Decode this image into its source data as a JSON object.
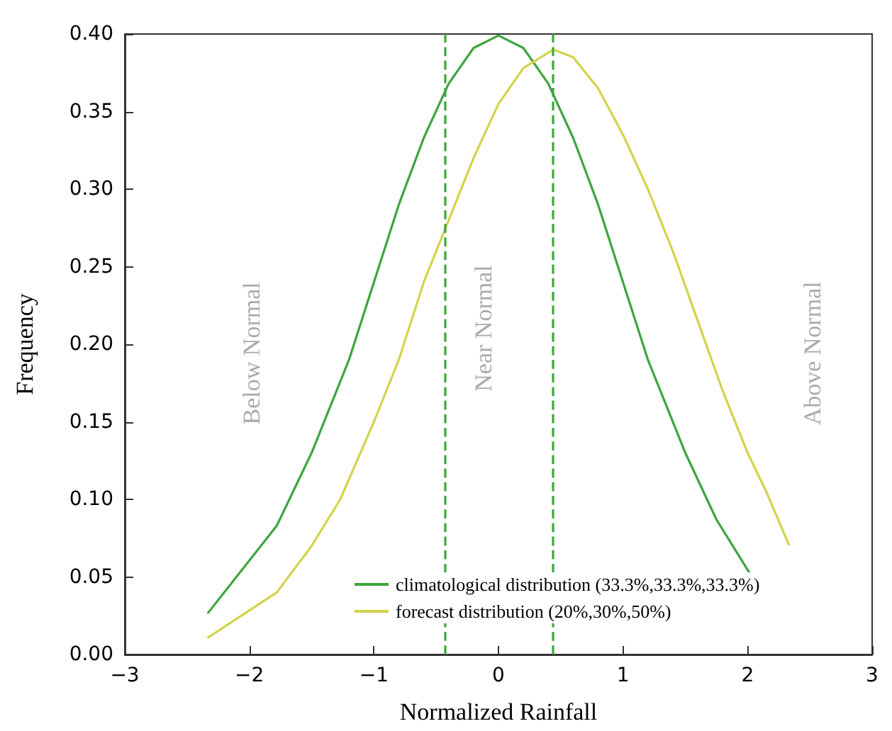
{
  "chart_data": {
    "type": "line",
    "xlabel": "Normalized Rainfall",
    "ylabel": "Frequency",
    "xlim": [
      -3,
      3
    ],
    "xticks": [
      {
        "value": -3,
        "label": "−3"
      },
      {
        "value": -2,
        "label": "−2"
      },
      {
        "value": -1,
        "label": "−1"
      },
      0,
      1,
      2,
      3
    ],
    "ylim": [
      0,
      0.4
    ],
    "yticks": [
      {
        "value": 0,
        "label": "0.00"
      },
      {
        "value": 0.05,
        "label": "0.05"
      },
      {
        "value": 0.1,
        "label": "0.10"
      },
      {
        "value": 0.15,
        "label": "0.15"
      },
      {
        "value": 0.2,
        "label": "0.20"
      },
      {
        "value": 0.25,
        "label": "0.25"
      },
      {
        "value": 0.3,
        "label": "0.30"
      },
      {
        "value": 0.35,
        "label": "0.35"
      },
      {
        "value": 0.4,
        "label": "0.40"
      }
    ],
    "series": [
      {
        "name": "climatological distribution (33.3%,33.3%,33.3%)",
        "color": "#3ea53e",
        "x": [
          -2.33,
          -1.78,
          -1.5,
          -1.2,
          -1,
          -0.8,
          -0.6,
          -0.4,
          -0.2,
          0,
          0.2,
          0.4,
          0.6,
          0.8,
          1,
          1.2,
          1.5,
          1.75,
          2.02
        ],
        "values": [
          0.027,
          0.083,
          0.13,
          0.19,
          0.24,
          0.29,
          0.333,
          0.368,
          0.391,
          0.399,
          0.391,
          0.368,
          0.333,
          0.29,
          0.24,
          0.19,
          0.13,
          0.087,
          0.052
        ]
      },
      {
        "name": "forecast distribution (20%,30%,50%)",
        "color": "#d2d44c",
        "x": [
          -2.33,
          -1.78,
          -1.5,
          -1.27,
          -1,
          -0.8,
          -0.6,
          -0.4,
          -0.2,
          0,
          0.2,
          0.44,
          0.6,
          0.8,
          1,
          1.2,
          1.4,
          1.6,
          1.8,
          2,
          2.15,
          2.33
        ],
        "values": [
          0.011,
          0.04,
          0.07,
          0.1,
          0.15,
          0.19,
          0.24,
          0.28,
          0.32,
          0.355,
          0.378,
          0.39,
          0.385,
          0.365,
          0.335,
          0.3,
          0.26,
          0.215,
          0.17,
          0.13,
          0.105,
          0.071
        ]
      }
    ],
    "ref_lines": [
      {
        "axis": "x",
        "value": -0.43,
        "color": "#3ea53e",
        "line_style": "dashed"
      },
      {
        "axis": "x",
        "value": 0.43,
        "color": "#3ea53e",
        "line_style": "dashed"
      }
    ],
    "annotations": [
      "Below Normal",
      "Near Normal",
      "Above Normal"
    ],
    "legend": "bottom",
    "grid": false,
    "marker": "none",
    "line_style": "solid"
  }
}
